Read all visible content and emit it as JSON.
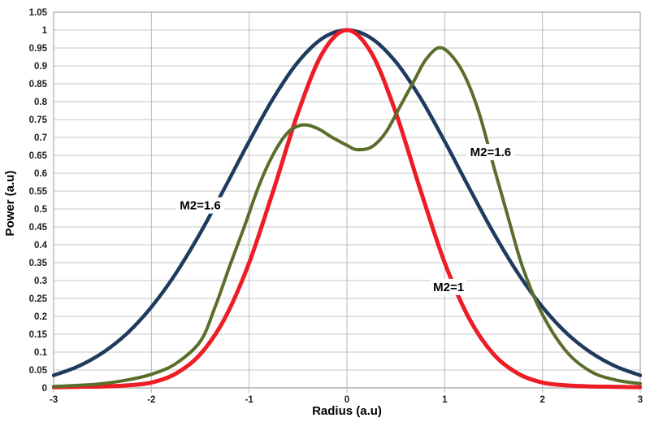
{
  "figure": {
    "background": "#ffffff"
  },
  "chart_data": {
    "type": "line",
    "title": "",
    "xlabel": "Radius (a.u)",
    "ylabel": "Power (a.u)",
    "xlim": [
      -3,
      3
    ],
    "ylim": [
      0,
      1.05
    ],
    "grid": true,
    "legend_position": "none (inline text annotations)",
    "x_ticks": [
      "-3",
      "-2",
      "-1",
      "0",
      "1",
      "2",
      "3"
    ],
    "y_ticks": [
      "0",
      "0.05",
      "0.1",
      "0.15",
      "0.2",
      "0.25",
      "0.3",
      "0.35",
      "0.4",
      "0.45",
      "0.5",
      "0.55",
      "0.6",
      "0.65",
      "0.7",
      "0.75",
      "0.8",
      "0.85",
      "0.9",
      "0.95",
      "1",
      "1.05"
    ],
    "colors": {
      "grid_horizontal": "#c4c4c4",
      "grid_vertical": "#b9b9b9",
      "plot_border": "#a6a6a6",
      "axis_line": "#b3b3b3",
      "tick_text": "#1e1e1e",
      "annotation_text": "#000000",
      "series_blue": "#1f3a5f",
      "series_red": "#ee1c25",
      "series_green": "#5a6e2c"
    },
    "series": [
      {
        "id": "gaussian-wide-m2-1.6",
        "name": "M2=1.6",
        "color": "#1f3a5f",
        "stroke_width": 4.5,
        "points": [
          [
            -3,
            0.035
          ],
          [
            -2.75,
            0.06
          ],
          [
            -2.5,
            0.098
          ],
          [
            -2.25,
            0.152
          ],
          [
            -2,
            0.226
          ],
          [
            -1.75,
            0.32
          ],
          [
            -1.5,
            0.433
          ],
          [
            -1.25,
            0.559
          ],
          [
            -1,
            0.689
          ],
          [
            -0.75,
            0.811
          ],
          [
            -0.5,
            0.911
          ],
          [
            -0.25,
            0.977
          ],
          [
            0,
            1.0
          ],
          [
            0.25,
            0.977
          ],
          [
            0.5,
            0.911
          ],
          [
            0.75,
            0.811
          ],
          [
            1,
            0.689
          ],
          [
            1.25,
            0.559
          ],
          [
            1.5,
            0.433
          ],
          [
            1.75,
            0.32
          ],
          [
            2,
            0.226
          ],
          [
            2.25,
            0.152
          ],
          [
            2.5,
            0.098
          ],
          [
            2.75,
            0.06
          ],
          [
            3,
            0.035
          ]
        ]
      },
      {
        "id": "gaussian-m2-1",
        "name": "M2=1",
        "color": "#ee1c25",
        "stroke_width": 5,
        "points": [
          [
            -3,
            0.002
          ],
          [
            -2.75,
            0.003
          ],
          [
            -2.5,
            0.004
          ],
          [
            -2.25,
            0.007
          ],
          [
            -2,
            0.015
          ],
          [
            -1.75,
            0.04
          ],
          [
            -1.5,
            0.094
          ],
          [
            -1.25,
            0.194
          ],
          [
            -1,
            0.35
          ],
          [
            -0.75,
            0.554
          ],
          [
            -0.5,
            0.769
          ],
          [
            -0.25,
            0.936
          ],
          [
            0,
            1.0
          ],
          [
            0.25,
            0.936
          ],
          [
            0.5,
            0.769
          ],
          [
            0.75,
            0.554
          ],
          [
            1,
            0.35
          ],
          [
            1.25,
            0.194
          ],
          [
            1.5,
            0.094
          ],
          [
            1.75,
            0.04
          ],
          [
            2,
            0.015
          ],
          [
            2.25,
            0.007
          ],
          [
            2.5,
            0.004
          ],
          [
            2.75,
            0.003
          ],
          [
            3,
            0.002
          ]
        ]
      },
      {
        "id": "multimode-m2-1.6",
        "name": "M2=1.6",
        "color": "#5a6e2c",
        "stroke_width": 4,
        "points": [
          [
            -3,
            0.004
          ],
          [
            -2.75,
            0.007
          ],
          [
            -2.5,
            0.012
          ],
          [
            -2.25,
            0.022
          ],
          [
            -2,
            0.038
          ],
          [
            -1.75,
            0.068
          ],
          [
            -1.5,
            0.13
          ],
          [
            -1.35,
            0.225
          ],
          [
            -1.2,
            0.34
          ],
          [
            -1.05,
            0.45
          ],
          [
            -0.9,
            0.565
          ],
          [
            -0.75,
            0.655
          ],
          [
            -0.6,
            0.715
          ],
          [
            -0.45,
            0.735
          ],
          [
            -0.3,
            0.725
          ],
          [
            -0.15,
            0.7
          ],
          [
            0,
            0.678
          ],
          [
            0.1,
            0.666
          ],
          [
            0.25,
            0.673
          ],
          [
            0.4,
            0.715
          ],
          [
            0.55,
            0.79
          ],
          [
            0.7,
            0.865
          ],
          [
            0.8,
            0.915
          ],
          [
            0.93,
            0.95
          ],
          [
            1.05,
            0.935
          ],
          [
            1.2,
            0.875
          ],
          [
            1.35,
            0.77
          ],
          [
            1.5,
            0.62
          ],
          [
            1.65,
            0.475
          ],
          [
            1.8,
            0.335
          ],
          [
            2,
            0.205
          ],
          [
            2.25,
            0.1
          ],
          [
            2.5,
            0.045
          ],
          [
            2.75,
            0.022
          ],
          [
            3,
            0.012
          ]
        ]
      }
    ],
    "annotations": [
      {
        "label": "M2=1.6",
        "x": -1.5,
        "y": 0.51,
        "series_id": "gaussian-wide-m2-1.6"
      },
      {
        "label": "M2=1.6",
        "x": 1.47,
        "y": 0.659,
        "series_id": "multimode-m2-1.6"
      },
      {
        "label": "M2=1",
        "x": 1.04,
        "y": 0.282,
        "series_id": "gaussian-m2-1"
      }
    ]
  }
}
